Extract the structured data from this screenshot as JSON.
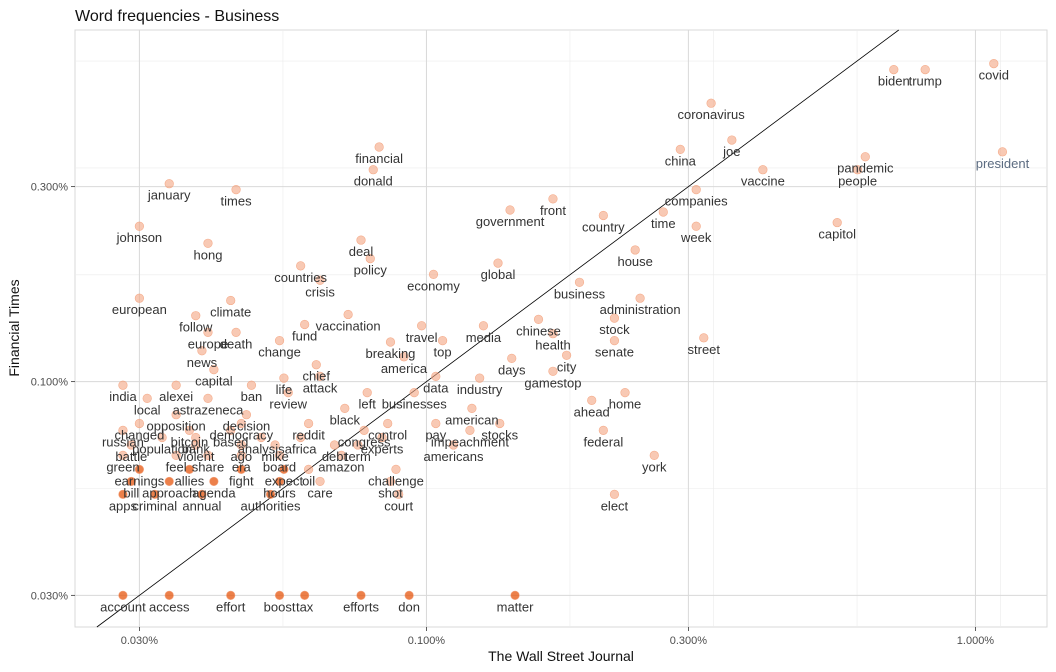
{
  "chart_data": {
    "type": "scatter",
    "title": "Word frequencies - Business",
    "xlabel": "The Wall Street Journal",
    "ylabel": "Financial Times",
    "x_scale": "log10",
    "y_scale": "log10",
    "xlim": [
      0.0229,
      1.35
    ],
    "ylim": [
      0.0251,
      0.725
    ],
    "x_ticks": [
      {
        "value": 0.03,
        "label": "0.030%"
      },
      {
        "value": 0.1,
        "label": "0.100%"
      },
      {
        "value": 0.3,
        "label": "0.300%"
      },
      {
        "value": 1.0,
        "label": "1.000%"
      }
    ],
    "y_ticks": [
      {
        "value": 0.03,
        "label": "0.030%"
      },
      {
        "value": 0.1,
        "label": "0.100%"
      },
      {
        "value": 0.3,
        "label": "0.300%"
      }
    ],
    "grid": true,
    "reference_line": "y = x",
    "point_color": "#f4a582",
    "dense_point_color": "#e6550d",
    "labeled_points": [
      {
        "word": "covid",
        "x": 1.08,
        "y": 0.6
      },
      {
        "word": "biden",
        "x": 0.71,
        "y": 0.58
      },
      {
        "word": "trump",
        "x": 0.81,
        "y": 0.58
      },
      {
        "word": "coronavirus",
        "x": 0.33,
        "y": 0.48
      },
      {
        "word": "president",
        "x": 1.12,
        "y": 0.365,
        "muted": true
      },
      {
        "word": "joe",
        "x": 0.36,
        "y": 0.39
      },
      {
        "word": "china",
        "x": 0.29,
        "y": 0.37
      },
      {
        "word": "pandemic",
        "x": 0.63,
        "y": 0.355
      },
      {
        "word": "financial",
        "x": 0.082,
        "y": 0.375
      },
      {
        "word": "donald",
        "x": 0.08,
        "y": 0.33
      },
      {
        "word": "vaccine",
        "x": 0.41,
        "y": 0.33
      },
      {
        "word": "people",
        "x": 0.61,
        "y": 0.33
      },
      {
        "word": "january",
        "x": 0.034,
        "y": 0.305
      },
      {
        "word": "times",
        "x": 0.045,
        "y": 0.295
      },
      {
        "word": "companies",
        "x": 0.31,
        "y": 0.295
      },
      {
        "word": "front",
        "x": 0.17,
        "y": 0.28
      },
      {
        "word": "government",
        "x": 0.142,
        "y": 0.263
      },
      {
        "word": "country",
        "x": 0.21,
        "y": 0.255
      },
      {
        "word": "time",
        "x": 0.27,
        "y": 0.26
      },
      {
        "word": "capitol",
        "x": 0.56,
        "y": 0.245
      },
      {
        "word": "johnson",
        "x": 0.03,
        "y": 0.24
      },
      {
        "word": "week",
        "x": 0.31,
        "y": 0.24
      },
      {
        "word": "hong",
        "x": 0.04,
        "y": 0.218
      },
      {
        "word": "deal",
        "x": 0.076,
        "y": 0.222
      },
      {
        "word": "house",
        "x": 0.24,
        "y": 0.21
      },
      {
        "word": "policy",
        "x": 0.079,
        "y": 0.2
      },
      {
        "word": "global",
        "x": 0.135,
        "y": 0.195
      },
      {
        "word": "countries",
        "x": 0.059,
        "y": 0.192
      },
      {
        "word": "crisis",
        "x": 0.064,
        "y": 0.177
      },
      {
        "word": "economy",
        "x": 0.103,
        "y": 0.183
      },
      {
        "word": "business",
        "x": 0.19,
        "y": 0.175
      },
      {
        "word": "european",
        "x": 0.03,
        "y": 0.16
      },
      {
        "word": "administration",
        "x": 0.245,
        "y": 0.16
      },
      {
        "word": "climate",
        "x": 0.044,
        "y": 0.158
      },
      {
        "word": "follow",
        "x": 0.038,
        "y": 0.145
      },
      {
        "word": "chinese",
        "x": 0.16,
        "y": 0.142
      },
      {
        "word": "vaccination",
        "x": 0.072,
        "y": 0.146
      },
      {
        "word": "fund",
        "x": 0.06,
        "y": 0.138
      },
      {
        "word": "stock",
        "x": 0.22,
        "y": 0.143
      },
      {
        "word": "travel",
        "x": 0.098,
        "y": 0.137
      },
      {
        "word": "media",
        "x": 0.127,
        "y": 0.137
      },
      {
        "word": "europe",
        "x": 0.04,
        "y": 0.132
      },
      {
        "word": "death",
        "x": 0.045,
        "y": 0.132
      },
      {
        "word": "health",
        "x": 0.17,
        "y": 0.131
      },
      {
        "word": "street",
        "x": 0.32,
        "y": 0.128
      },
      {
        "word": "change",
        "x": 0.054,
        "y": 0.126
      },
      {
        "word": "breaking",
        "x": 0.086,
        "y": 0.125
      },
      {
        "word": "top",
        "x": 0.107,
        "y": 0.126
      },
      {
        "word": "senate",
        "x": 0.22,
        "y": 0.126
      },
      {
        "word": "news",
        "x": 0.039,
        "y": 0.119
      },
      {
        "word": "city",
        "x": 0.18,
        "y": 0.116
      },
      {
        "word": "america",
        "x": 0.091,
        "y": 0.115
      },
      {
        "word": "days",
        "x": 0.143,
        "y": 0.114
      },
      {
        "word": "capital",
        "x": 0.041,
        "y": 0.107
      },
      {
        "word": "gamestop",
        "x": 0.17,
        "y": 0.106
      },
      {
        "word": "chief",
        "x": 0.063,
        "y": 0.11
      },
      {
        "word": "attack",
        "x": 0.064,
        "y": 0.103
      },
      {
        "word": "life",
        "x": 0.055,
        "y": 0.102
      },
      {
        "word": "data",
        "x": 0.104,
        "y": 0.103
      },
      {
        "word": "industry",
        "x": 0.125,
        "y": 0.102
      },
      {
        "word": "india",
        "x": 0.028,
        "y": 0.098
      },
      {
        "word": "alexei",
        "x": 0.035,
        "y": 0.098
      },
      {
        "word": "ban",
        "x": 0.048,
        "y": 0.098
      },
      {
        "word": "review",
        "x": 0.056,
        "y": 0.094
      },
      {
        "word": "left",
        "x": 0.078,
        "y": 0.094
      },
      {
        "word": "businesses",
        "x": 0.095,
        "y": 0.094
      },
      {
        "word": "home",
        "x": 0.23,
        "y": 0.094
      },
      {
        "word": "local",
        "x": 0.031,
        "y": 0.091
      },
      {
        "word": "astrazeneca",
        "x": 0.04,
        "y": 0.091
      },
      {
        "word": "ahead",
        "x": 0.2,
        "y": 0.09
      },
      {
        "word": "black",
        "x": 0.071,
        "y": 0.086
      },
      {
        "word": "american",
        "x": 0.121,
        "y": 0.086
      },
      {
        "word": "opposition",
        "x": 0.035,
        "y": 0.083
      },
      {
        "word": "decision",
        "x": 0.047,
        "y": 0.083
      },
      {
        "word": "changed",
        "x": 0.03,
        "y": 0.079
      },
      {
        "word": "democracy",
        "x": 0.046,
        "y": 0.079
      },
      {
        "word": "reddit",
        "x": 0.061,
        "y": 0.079
      },
      {
        "word": "control",
        "x": 0.085,
        "y": 0.079
      },
      {
        "word": "pay",
        "x": 0.104,
        "y": 0.079
      },
      {
        "word": "stocks",
        "x": 0.136,
        "y": 0.079
      },
      {
        "word": "russian",
        "x": 0.028,
        "y": 0.076
      },
      {
        "word": "bitcoin",
        "x": 0.037,
        "y": 0.076
      },
      {
        "word": "based",
        "x": 0.044,
        "y": 0.076
      },
      {
        "word": "congress",
        "x": 0.077,
        "y": 0.076
      },
      {
        "word": "impeachment",
        "x": 0.12,
        "y": 0.076
      },
      {
        "word": "federal",
        "x": 0.21,
        "y": 0.076
      },
      {
        "word": "population",
        "x": 0.033,
        "y": 0.073
      },
      {
        "word": "bank",
        "x": 0.038,
        "y": 0.073
      },
      {
        "word": "analysis",
        "x": 0.05,
        "y": 0.073
      },
      {
        "word": "africa",
        "x": 0.059,
        "y": 0.073
      },
      {
        "word": "experts",
        "x": 0.083,
        "y": 0.073
      },
      {
        "word": "battle",
        "x": 0.029,
        "y": 0.07
      },
      {
        "word": "violent",
        "x": 0.038,
        "y": 0.07
      },
      {
        "word": "ago",
        "x": 0.046,
        "y": 0.07
      },
      {
        "word": "mike",
        "x": 0.053,
        "y": 0.07
      },
      {
        "word": "debt",
        "x": 0.068,
        "y": 0.07
      },
      {
        "word": "term",
        "x": 0.075,
        "y": 0.07
      },
      {
        "word": "americans",
        "x": 0.112,
        "y": 0.07
      },
      {
        "word": "york",
        "x": 0.26,
        "y": 0.066
      },
      {
        "word": "green",
        "x": 0.028,
        "y": 0.066
      },
      {
        "word": "feel",
        "x": 0.035,
        "y": 0.066
      },
      {
        "word": "share",
        "x": 0.04,
        "y": 0.066
      },
      {
        "word": "era",
        "x": 0.046,
        "y": 0.066
      },
      {
        "word": "board",
        "x": 0.054,
        "y": 0.066
      },
      {
        "word": "amazon",
        "x": 0.07,
        "y": 0.066
      },
      {
        "word": "earnings",
        "x": 0.03,
        "y": 0.061
      },
      {
        "word": "allies",
        "x": 0.037,
        "y": 0.061
      },
      {
        "word": "fight",
        "x": 0.046,
        "y": 0.061
      },
      {
        "word": "expect",
        "x": 0.055,
        "y": 0.061
      },
      {
        "word": "oil",
        "x": 0.061,
        "y": 0.061
      },
      {
        "word": "challenge",
        "x": 0.088,
        "y": 0.061
      },
      {
        "word": "bill",
        "x": 0.029,
        "y": 0.057
      },
      {
        "word": "approach",
        "x": 0.034,
        "y": 0.057
      },
      {
        "word": "agenda",
        "x": 0.041,
        "y": 0.057
      },
      {
        "word": "hours",
        "x": 0.054,
        "y": 0.057
      },
      {
        "word": "care",
        "x": 0.064,
        "y": 0.057
      },
      {
        "word": "shot",
        "x": 0.086,
        "y": 0.057
      },
      {
        "word": "apps",
        "x": 0.028,
        "y": 0.053
      },
      {
        "word": "criminal",
        "x": 0.032,
        "y": 0.053
      },
      {
        "word": "annual",
        "x": 0.039,
        "y": 0.053
      },
      {
        "word": "authorities",
        "x": 0.052,
        "y": 0.053
      },
      {
        "word": "court",
        "x": 0.089,
        "y": 0.053
      },
      {
        "word": "elect",
        "x": 0.22,
        "y": 0.053
      },
      {
        "word": "account",
        "x": 0.028,
        "y": 0.03
      },
      {
        "word": "access",
        "x": 0.034,
        "y": 0.03
      },
      {
        "word": "effort",
        "x": 0.044,
        "y": 0.03
      },
      {
        "word": "boost",
        "x": 0.054,
        "y": 0.03
      },
      {
        "word": "tax",
        "x": 0.06,
        "y": 0.03
      },
      {
        "word": "efforts",
        "x": 0.076,
        "y": 0.03
      },
      {
        "word": "don",
        "x": 0.093,
        "y": 0.03
      },
      {
        "word": "matter",
        "x": 0.145,
        "y": 0.03
      }
    ]
  }
}
